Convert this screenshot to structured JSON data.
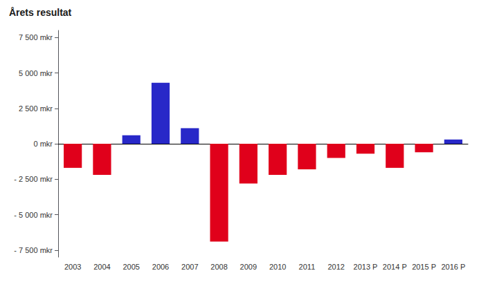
{
  "chart_data": {
    "type": "bar",
    "title": "Årets resultat",
    "categories": [
      "2003",
      "2004",
      "2005",
      "2006",
      "2007",
      "2008",
      "2009",
      "2010",
      "2011",
      "2012",
      "2013 P",
      "2014 P",
      "2015 P",
      "2016 P"
    ],
    "values": [
      -1700,
      -2200,
      600,
      4300,
      1100,
      -6900,
      -2800,
      -2200,
      -1800,
      -1000,
      -700,
      -1700,
      -600,
      300
    ],
    "colors": [
      "#e0001b",
      "#e0001b",
      "#2828c8",
      "#2828c8",
      "#2828c8",
      "#e0001b",
      "#e0001b",
      "#e0001b",
      "#e0001b",
      "#e0001b",
      "#e0001b",
      "#e0001b",
      "#e0001b",
      "#2828c8"
    ],
    "ylim": [
      -8000,
      8000
    ],
    "yticks": [
      {
        "value": -7500,
        "label": "- 7 500 mkr"
      },
      {
        "value": -5000,
        "label": "- 5 000 mkr"
      },
      {
        "value": -2500,
        "label": "- 2 500 mkr"
      },
      {
        "value": 0,
        "label": "0 mkr"
      },
      {
        "value": 2500,
        "label": "2 500 mkr"
      },
      {
        "value": 5000,
        "label": "5 000 mkr"
      },
      {
        "value": 7500,
        "label": "7 500 mkr"
      }
    ],
    "grid": false
  }
}
